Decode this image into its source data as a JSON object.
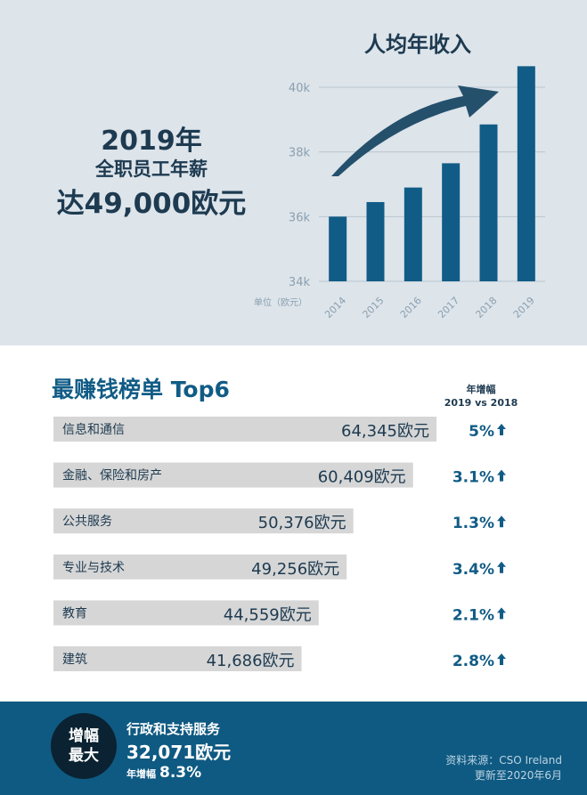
{
  "headline": {
    "year": "2019年",
    "line2": "全职员工年薪",
    "line3": "达49,000欧元"
  },
  "chart_data": [
    {
      "type": "bar",
      "title": "人均年收入",
      "unit_label": "单位（欧元）",
      "categories": [
        "2014",
        "2015",
        "2016",
        "2017",
        "2018",
        "2019"
      ],
      "values": [
        36000,
        36450,
        36900,
        37650,
        38850,
        40650
      ],
      "ylim": [
        34000,
        40000
      ],
      "yticks": [
        34000,
        36000,
        38000,
        40000
      ],
      "ytick_labels": [
        "34k",
        "36k",
        "38k",
        "40k"
      ],
      "grid": true,
      "trend_arrow": true,
      "bar_color": "#115c86"
    },
    {
      "type": "bar",
      "orientation": "horizontal",
      "title": "最赚钱榜单 Top6",
      "growth_header": [
        "年增幅",
        "2019 vs 2018"
      ],
      "categories": [
        "信息和通信",
        "金融、保险和房产",
        "公共服务",
        "专业与技术",
        "教育",
        "建筑"
      ],
      "values": [
        64345,
        60409,
        50376,
        49256,
        44559,
        41686
      ],
      "value_labels": [
        "64,345欧元",
        "60,409欧元",
        "50,376欧元",
        "49,256欧元",
        "44,559欧元",
        "41,686欧元"
      ],
      "growth_labels": [
        "5%",
        "3.1%",
        "1.3%",
        "3.4%",
        "2.1%",
        "2.8%"
      ],
      "bar_color": "#d6d6d6"
    }
  ],
  "footer": {
    "badge_line1": "增幅",
    "badge_line2": "最大",
    "category": "行政和支持服务",
    "value": "32,071欧元",
    "growth_label": "年增幅",
    "growth_value": "8.3%",
    "source_line1": "资料来源：CSO Ireland",
    "source_line2": "更新至2020年6月"
  },
  "colors": {
    "top_bg": "#dde4ea",
    "accent": "#115c86",
    "footer_bg": "#0f5a82",
    "badge_bg": "#0a2231"
  }
}
